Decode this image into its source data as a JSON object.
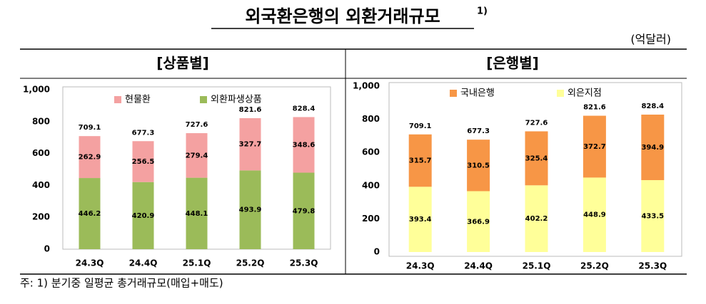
{
  "title": "외국환은행의 외환거래규모",
  "title_note": "1)",
  "unit": "(억달러)",
  "footnote": "주:  1)  분기중  일평균  총거래규모(매입+매도)",
  "chart_data": [
    {
      "type": "stacked-bar",
      "title": "[상품별]",
      "categories": [
        "24.3Q",
        "24.4Q",
        "25.1Q",
        "25.2Q",
        "25.3Q"
      ],
      "series": [
        {
          "name": "외환파생상품",
          "color": "#9bbb59",
          "values": [
            446.2,
            420.9,
            448.1,
            493.9,
            479.8
          ]
        },
        {
          "name": "현물환",
          "color": "#f4a1a1",
          "values": [
            262.9,
            256.5,
            279.4,
            327.7,
            348.6
          ]
        }
      ],
      "totals": [
        709.1,
        677.3,
        727.6,
        821.6,
        828.4
      ],
      "ylim": [
        0,
        1000
      ],
      "yticks": [
        0,
        200,
        400,
        600,
        800,
        {
          "value": 1000,
          "label": "1,000"
        }
      ]
    },
    {
      "type": "stacked-bar",
      "title": "[은행별]",
      "categories": [
        "24.3Q",
        "24.4Q",
        "25.1Q",
        "25.2Q",
        "25.3Q"
      ],
      "series": [
        {
          "name": "외은지점",
          "color": "#ffff99",
          "values": [
            393.4,
            366.9,
            402.2,
            448.9,
            433.5
          ]
        },
        {
          "name": "국내은행",
          "color": "#f79646",
          "values": [
            315.7,
            310.5,
            325.4,
            372.7,
            394.9
          ]
        }
      ],
      "totals": [
        709.1,
        677.3,
        727.6,
        821.6,
        828.4
      ],
      "ylim": [
        0,
        1000
      ],
      "yticks": [
        0,
        200,
        400,
        600,
        800,
        {
          "value": 1000,
          "label": "1,000"
        }
      ]
    }
  ]
}
